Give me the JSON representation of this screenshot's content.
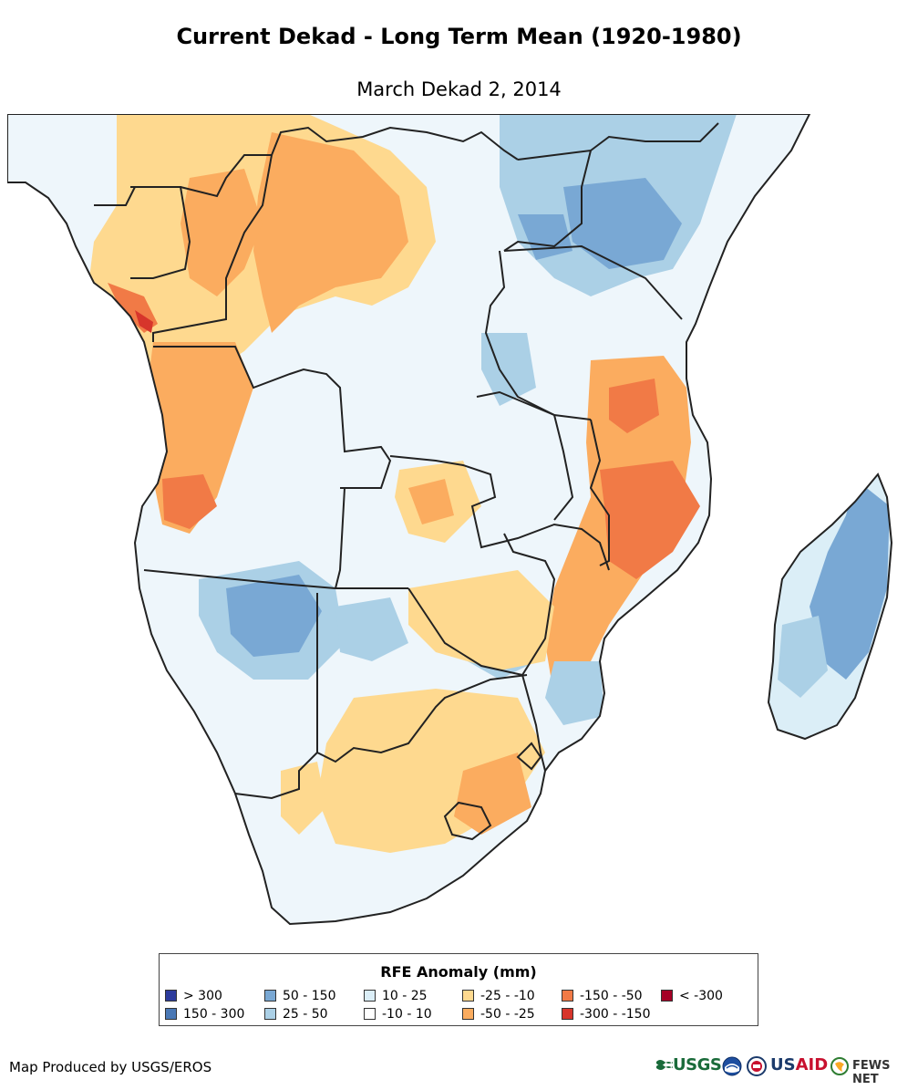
{
  "title": "Current Dekad - Long Term Mean (1920-1980)",
  "subtitle": "March Dekad 2, 2014",
  "legend": {
    "title": "RFE Anomaly (mm)",
    "items": [
      {
        "label": "> 300",
        "color": "#2c3b9c"
      },
      {
        "label": "150 - 300",
        "color": "#4a78b5"
      },
      {
        "label": "50 - 150",
        "color": "#79a8d4"
      },
      {
        "label": "25 - 50",
        "color": "#abd0e6"
      },
      {
        "label": "10 - 25",
        "color": "#dbeef7"
      },
      {
        "label": "-10 - 10",
        "color": "#ffffff"
      },
      {
        "label": "-25 - -10",
        "color": "#fed98f"
      },
      {
        "label": "-50 - -25",
        "color": "#fbac5f"
      },
      {
        "label": "-150 - -50",
        "color": "#f17a46"
      },
      {
        "label": "-300 - -150",
        "color": "#d7352b"
      },
      {
        "label": "< -300",
        "color": "#a50026"
      }
    ]
  },
  "footer": "Map Produced by USGS/EROS",
  "logos": {
    "usgs": "USGS",
    "usaid_us": "US",
    "usaid_aid": "AID",
    "fews": "FEWS NET"
  }
}
